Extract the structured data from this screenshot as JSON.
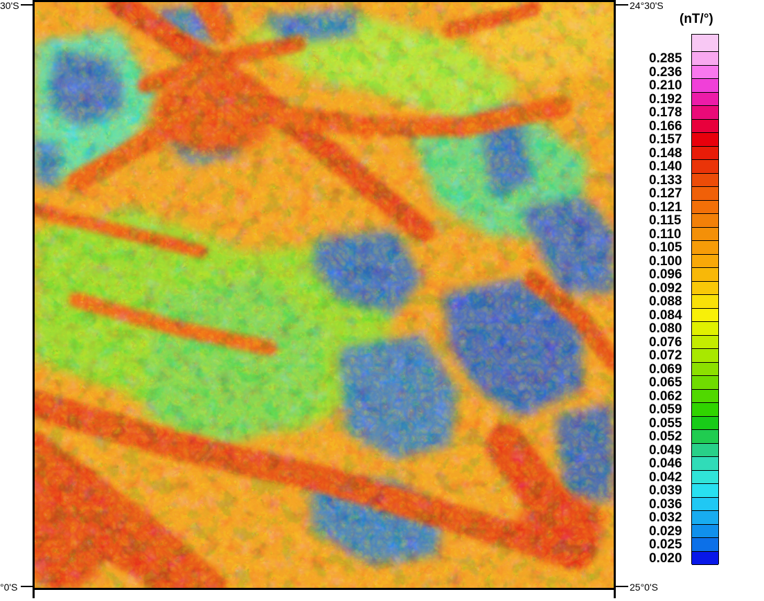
{
  "map": {
    "coords": {
      "top_left": "30'S",
      "top_right": "24°30'S",
      "bottom_left": "°0'S",
      "bottom_right": "25°0'S"
    }
  },
  "legend": {
    "title": "(nT/°)",
    "labels": [
      "0.285",
      "0.236",
      "0.210",
      "0.192",
      "0.178",
      "0.166",
      "0.157",
      "0.148",
      "0.140",
      "0.133",
      "0.127",
      "0.121",
      "0.115",
      "0.110",
      "0.105",
      "0.100",
      "0.096",
      "0.092",
      "0.088",
      "0.084",
      "0.080",
      "0.076",
      "0.072",
      "0.069",
      "0.065",
      "0.062",
      "0.059",
      "0.055",
      "0.052",
      "0.049",
      "0.046",
      "0.042",
      "0.039",
      "0.036",
      "0.032",
      "0.029",
      "0.025",
      "0.020"
    ],
    "colors": [
      "#f8a8f0",
      "#f878ee",
      "#f040d8",
      "#ec1ca8",
      "#ea0a78",
      "#e8003c",
      "#e8000c",
      "#e81c08",
      "#ea3408",
      "#ec4c08",
      "#f06008",
      "#f27008",
      "#f28008",
      "#f49008",
      "#f69c08",
      "#f8a808",
      "#f8b808",
      "#f8c808",
      "#f8e008",
      "#f8f008",
      "#e0f000",
      "#c4ec00",
      "#a8e800",
      "#8ce000",
      "#70dc00",
      "#50d800",
      "#30d400",
      "#18cc18",
      "#20cc50",
      "#28d088",
      "#30dcb8",
      "#30e4d8",
      "#28e0f0",
      "#20c8f4",
      "#18acf0",
      "#1090ec",
      "#0c70e8",
      "#0818e8"
    ]
  }
}
